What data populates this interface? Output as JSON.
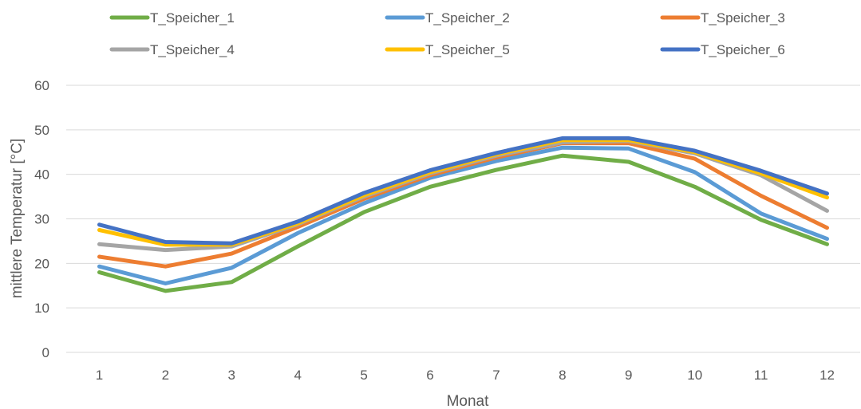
{
  "chart_data": {
    "type": "line",
    "title": "",
    "xlabel": "Monat",
    "ylabel": "mittlere Temperatur [°C]",
    "categories": [
      "1",
      "2",
      "3",
      "4",
      "5",
      "6",
      "7",
      "8",
      "9",
      "10",
      "11",
      "12"
    ],
    "ylim": [
      0,
      60
    ],
    "yticks": [
      "0",
      "10",
      "20",
      "30",
      "40",
      "50",
      "60"
    ],
    "grid": true,
    "legend_position": "top",
    "series": [
      {
        "name": "T_Speicher_1",
        "color": "#70AD47",
        "values": [
          18.0,
          13.8,
          15.8,
          23.8,
          31.5,
          37.2,
          41.0,
          44.2,
          42.8,
          37.2,
          29.8,
          24.3
        ]
      },
      {
        "name": "T_Speicher_2",
        "color": "#5B9BD5",
        "values": [
          19.3,
          15.5,
          19.0,
          26.8,
          33.5,
          39.2,
          43.0,
          46.0,
          45.8,
          40.5,
          31.2,
          25.5
        ]
      },
      {
        "name": "T_Speicher_3",
        "color": "#ED7D31",
        "values": [
          21.5,
          19.3,
          22.2,
          28.2,
          34.5,
          39.8,
          43.8,
          47.0,
          47.0,
          43.5,
          35.2,
          28.0
        ]
      },
      {
        "name": "T_Speicher_4",
        "color": "#A5A5A5",
        "values": [
          24.3,
          23.0,
          23.8,
          28.8,
          35.0,
          40.2,
          44.2,
          47.2,
          47.5,
          44.7,
          39.8,
          31.8
        ]
      },
      {
        "name": "T_Speicher_5",
        "color": "#FFC000",
        "values": [
          27.5,
          24.2,
          24.2,
          29.0,
          35.3,
          40.5,
          44.5,
          47.7,
          47.7,
          45.0,
          40.2,
          34.8
        ]
      },
      {
        "name": "T_Speicher_6",
        "color": "#4472C4",
        "values": [
          28.7,
          24.8,
          24.5,
          29.4,
          35.8,
          40.9,
          44.8,
          48.1,
          48.1,
          45.3,
          40.8,
          35.7
        ]
      }
    ]
  }
}
